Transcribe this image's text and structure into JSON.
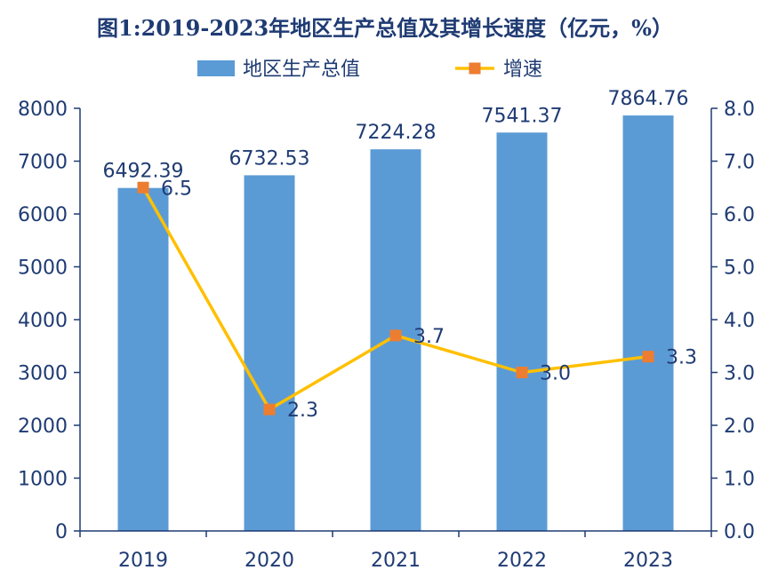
{
  "chart_data": {
    "type": "bar+line",
    "title": "图1:2019-2023年地区生产总值及其增长速度（亿元，%）",
    "categories": [
      "2019",
      "2020",
      "2021",
      "2022",
      "2023"
    ],
    "series": [
      {
        "name": "地区生产总值",
        "type": "bar",
        "axis": "left",
        "values": [
          6492.39,
          6732.53,
          7224.28,
          7541.37,
          7864.76
        ],
        "data_labels": [
          "6492.39",
          "6732.53",
          "7224.28",
          "7541.37",
          "7864.76"
        ],
        "color": "#5b9bd5"
      },
      {
        "name": "增速",
        "type": "line",
        "axis": "right",
        "values": [
          6.5,
          2.3,
          3.7,
          3.0,
          3.3
        ],
        "data_labels": [
          "6.5",
          "2.3",
          "3.7",
          "3.0",
          "3.3"
        ],
        "color": "#ffc000",
        "marker_color": "#ed7d31"
      }
    ],
    "y_left": {
      "range": [
        0,
        8000
      ],
      "ticks": [
        "0",
        "1000",
        "2000",
        "3000",
        "4000",
        "5000",
        "6000",
        "7000",
        "8000"
      ]
    },
    "y_right": {
      "range": [
        0,
        8
      ],
      "ticks": [
        "0.0",
        "1.0",
        "2.0",
        "3.0",
        "4.0",
        "5.0",
        "6.0",
        "7.0",
        "8.0"
      ]
    },
    "axis_color": "#1f3b73",
    "grid": false,
    "legend_position": "top-center"
  }
}
